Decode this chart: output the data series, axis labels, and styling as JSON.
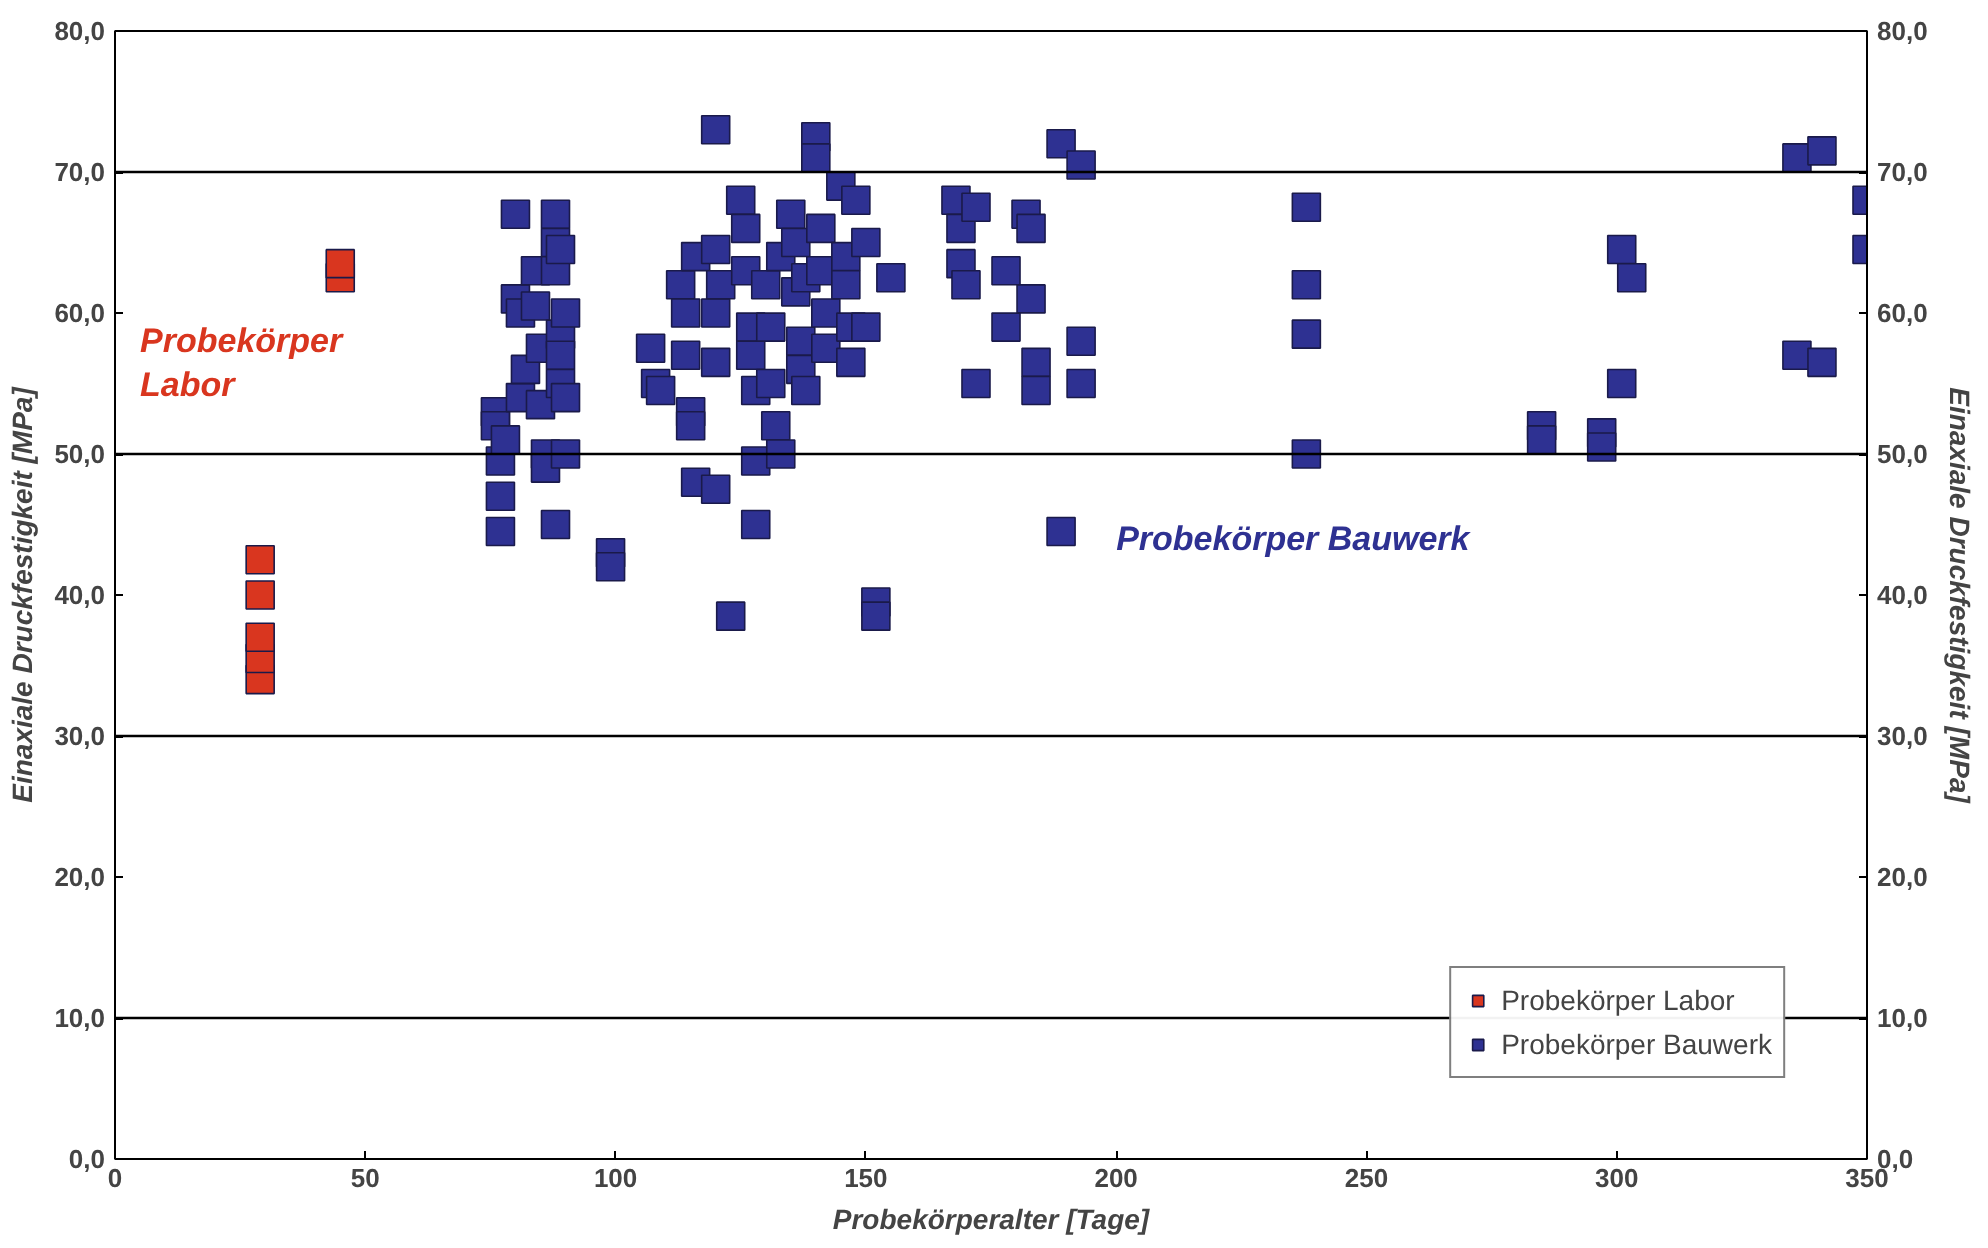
{
  "chart_data": {
    "type": "scatter",
    "xlabel": "Probekörperalter [Tage]",
    "ylabel": "Einaxiale Druckfestigkeit [MPa]",
    "y2label": "Einaxiale Druckfestigkeit [MPa]",
    "xlim": [
      0,
      350
    ],
    "xticks": [
      0,
      50,
      100,
      150,
      200,
      250,
      300,
      350
    ],
    "ylim": [
      0,
      80
    ],
    "yticks": [
      {
        "value": 0,
        "label": "0,0"
      },
      {
        "value": 10,
        "label": "10,0"
      },
      {
        "value": 20,
        "label": "20,0"
      },
      {
        "value": 30,
        "label": "30,0"
      },
      {
        "value": 40,
        "label": "40,0"
      },
      {
        "value": 50,
        "label": "50,0"
      },
      {
        "value": 60,
        "label": "60,0"
      },
      {
        "value": 70,
        "label": "70,0"
      },
      {
        "value": 80,
        "label": "80,0"
      }
    ],
    "y2lim": [
      0,
      80
    ],
    "y2ticks": [
      {
        "value": 0,
        "label": "0,0"
      },
      {
        "value": 10,
        "label": "10,0"
      },
      {
        "value": 20,
        "label": "20,0"
      },
      {
        "value": 30,
        "label": "30,0"
      },
      {
        "value": 40,
        "label": "40,0"
      },
      {
        "value": 50,
        "label": "50,0"
      },
      {
        "value": 60,
        "label": "60,0"
      },
      {
        "value": 70,
        "label": "70,0"
      },
      {
        "value": 80,
        "label": "80,0"
      }
    ],
    "marker": "square",
    "legend": "bottom right",
    "grid": false,
    "ref_lines": [
      {
        "axis": "y",
        "value": 10,
        "color": "#000000"
      },
      {
        "axis": "y",
        "value": 30,
        "color": "#000000"
      },
      {
        "axis": "y",
        "value": 50,
        "color": "#000000"
      },
      {
        "axis": "y",
        "value": 70,
        "color": "#000000"
      }
    ],
    "annotations": [
      "Probekörper\nLabor",
      "Probekörper Bauwerk"
    ],
    "series": [
      {
        "name": "Probekörper Labor",
        "color": "#d9361f",
        "x": [
          29,
          29,
          29,
          29,
          29,
          45,
          45
        ],
        "values": [
          34,
          35.5,
          37,
          40,
          42.5,
          62.5,
          63.5
        ]
      },
      {
        "name": "Probekörper Bauwerk",
        "color": "#2e3192",
        "x": [
          76,
          76,
          77,
          77,
          77,
          78,
          80,
          80,
          81,
          81,
          82,
          84,
          84,
          85,
          85,
          86,
          86,
          88,
          88,
          88,
          89,
          89,
          89,
          90,
          90,
          88,
          89,
          90,
          99,
          99,
          107,
          108,
          109,
          113,
          114,
          114,
          115,
          115,
          116,
          116,
          120,
          120,
          120,
          120,
          120,
          121,
          123,
          125,
          126,
          126,
          127,
          127,
          128,
          128,
          128,
          130,
          131,
          131,
          132,
          133,
          133,
          135,
          136,
          136,
          137,
          137,
          138,
          138,
          140,
          140,
          141,
          141,
          142,
          142,
          145,
          146,
          146,
          147,
          147,
          148,
          150,
          150,
          152,
          152,
          155,
          168,
          169,
          169,
          170,
          172,
          172,
          178,
          178,
          182,
          183,
          183,
          184,
          184,
          189,
          189,
          193,
          193,
          193,
          238,
          238,
          238,
          238,
          285,
          285,
          297,
          297,
          301,
          303,
          301,
          336,
          336,
          341,
          341,
          350,
          350
        ],
        "values": [
          53,
          52,
          49.5,
          47,
          44.5,
          51,
          67,
          61,
          54,
          60,
          56,
          63,
          60.5,
          57.5,
          53.5,
          50,
          49,
          67,
          65,
          63,
          58.5,
          57,
          55,
          54,
          50,
          45,
          64.5,
          60,
          43,
          42,
          57.5,
          55,
          54.5,
          62,
          60,
          57,
          53,
          52,
          48,
          64,
          73,
          64.5,
          60,
          56.5,
          47.5,
          62,
          38.5,
          68,
          66,
          63,
          59,
          57,
          54.5,
          49.5,
          45,
          62,
          59,
          55,
          52,
          50,
          64,
          67,
          65,
          61.5,
          58,
          56,
          54.5,
          62.5,
          72.5,
          71,
          66,
          63,
          60,
          57.5,
          69,
          64,
          62,
          59,
          56.5,
          68,
          65,
          59,
          39.5,
          38.5,
          62.5,
          68,
          66,
          63.5,
          62,
          67.5,
          55,
          63,
          59,
          67,
          66,
          61,
          56.5,
          54.5,
          72,
          44.5,
          70.5,
          58,
          55,
          67.5,
          62,
          58.5,
          50,
          52,
          51,
          51.5,
          50.5,
          64.5,
          62.5,
          55,
          71,
          57,
          71.5,
          56.5,
          68,
          64.5
        ]
      }
    ]
  }
}
